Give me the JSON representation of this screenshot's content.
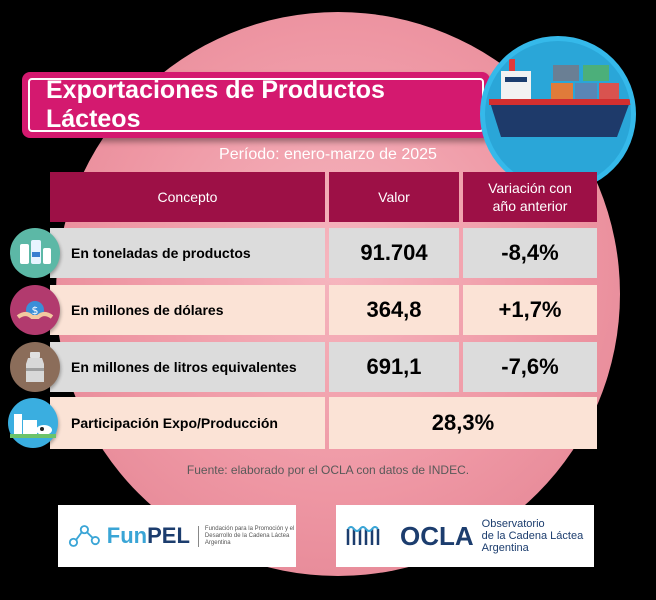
{
  "title": "Exportaciones de Productos Lácteos",
  "period": "Período: enero-marzo de 2025",
  "table": {
    "headers": [
      "Concepto",
      "Valor",
      "Variación con año anterior"
    ],
    "rows": [
      {
        "concept": "En toneladas de productos",
        "value": "91.704",
        "variation": "-8,4%",
        "icon": "dairy-products-icon"
      },
      {
        "concept": "En millones de dólares",
        "value": "364,8",
        "variation": "+1,7%",
        "icon": "money-handshake-icon"
      },
      {
        "concept": "En millones de litros equivalentes",
        "value": "691,1",
        "variation": "-7,6%",
        "icon": "milk-can-icon"
      },
      {
        "concept": "Participación Expo/Producción",
        "value": "28,3%",
        "icon": "dairy-farm-icon"
      }
    ]
  },
  "source": "Fuente: elaborado por el OCLA con datos de INDEC.",
  "logos": {
    "funpel": {
      "name_a": "Fun",
      "name_b": "PEL",
      "tagline": "Fundación para la Promoción y el Desarrollo de la Cadena Láctea Argentina"
    },
    "ocla": {
      "name": "OCLA",
      "line1": "Observatorio",
      "line2": "de la Cadena Láctea",
      "line3": "Argentina"
    }
  },
  "colors": {
    "title_bg": "#d4196f",
    "header_bg": "#9d1046",
    "row_grey": "#dcdcdc",
    "row_peach": "#fbe3d6",
    "circle": "#ee96a3",
    "ship_bg": "#2aa6d8"
  },
  "decorations": [
    "cargo-ship-icon"
  ]
}
